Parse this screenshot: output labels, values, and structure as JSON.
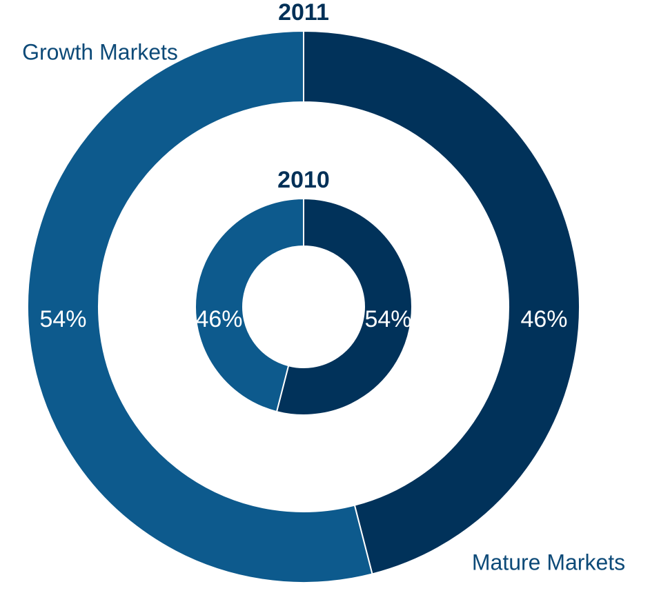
{
  "chart_data": {
    "type": "donut",
    "categories": [
      "Mature Markets",
      "Growth Markets"
    ],
    "colors": [
      "#01325a",
      "#0d5a8d"
    ],
    "series": [
      {
        "name": "2011",
        "values": [
          46,
          54
        ],
        "value_labels": [
          "46%",
          "54%"
        ]
      },
      {
        "name": "2010",
        "values": [
          54,
          46
        ],
        "value_labels": [
          "54%",
          "46%"
        ]
      }
    ]
  }
}
